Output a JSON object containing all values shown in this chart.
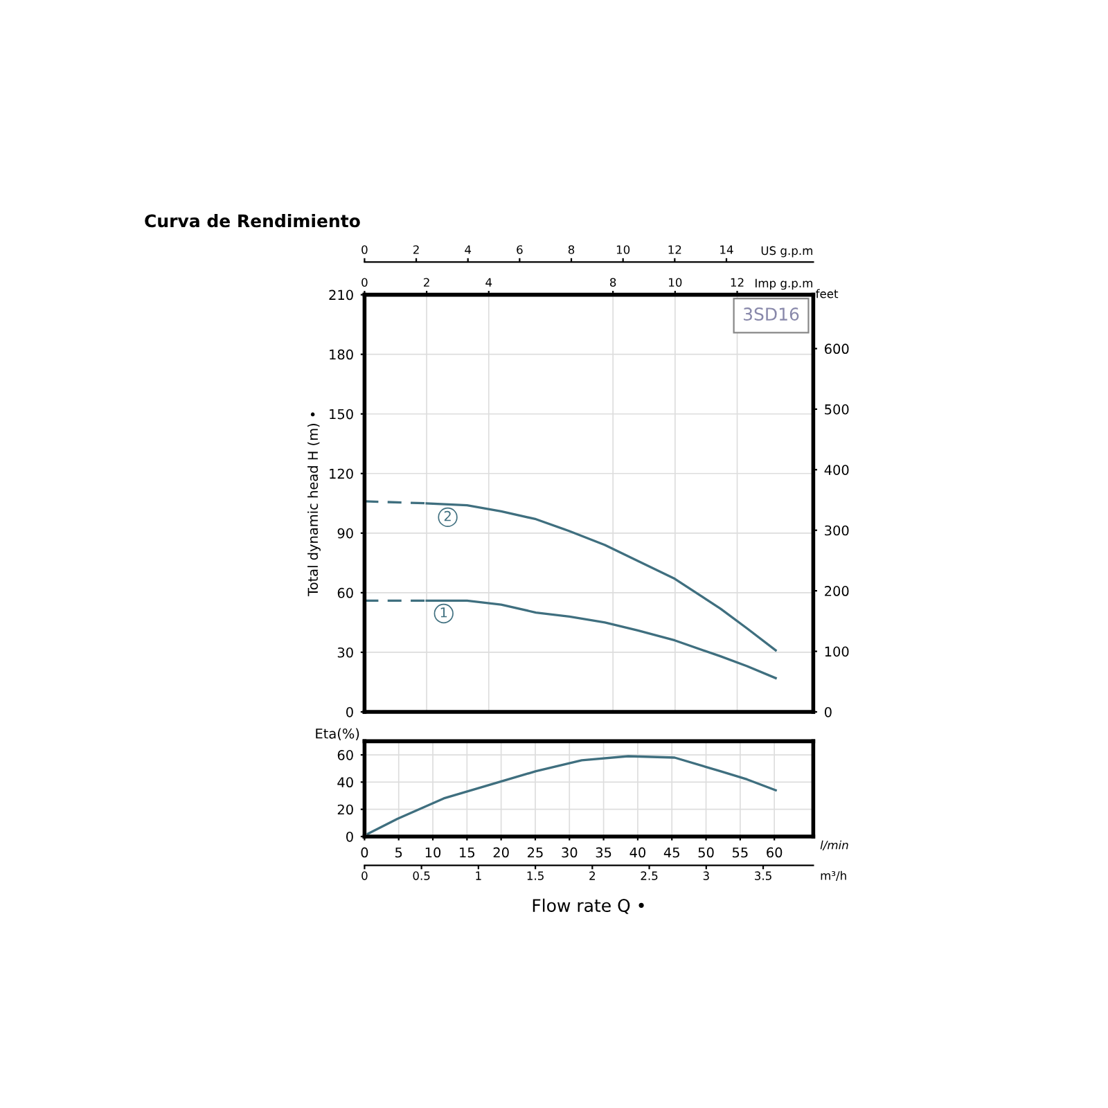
{
  "chart_data": [
    {
      "type": "line",
      "title": "Curva de Rendimiento",
      "ylabel": "Total dynamic head H (m) •",
      "y2label": "feet",
      "xlabel": "Imp g.p.m",
      "x2label": "US g.p.m",
      "xlim": [
        0,
        14.45
      ],
      "xticks": [
        0,
        2,
        4,
        8,
        10,
        12
      ],
      "x2lim": [
        0,
        17.36
      ],
      "x2ticks": [
        0,
        2,
        4,
        6,
        8,
        10,
        12,
        14
      ],
      "ylim": [
        0,
        210
      ],
      "yticks": [
        0,
        30,
        60,
        90,
        120,
        150,
        180,
        210
      ],
      "y2lim": [
        0,
        689
      ],
      "y2ticks": [
        0,
        100,
        200,
        300,
        400,
        500,
        600
      ],
      "grid": true,
      "series": [
        {
          "color": "#3f6f7f",
          "line_style": "dashed",
          "x": [
            0,
            2.0
          ],
          "values": [
            106,
            105
          ]
        },
        {
          "color": "#3f6f7f",
          "line_style": "solid",
          "x": [
            2.0,
            3.3,
            4.4,
            5.52,
            6.6,
            7.74,
            8.8,
            9.99,
            11.46,
            12.32,
            13.24
          ],
          "values": [
            105,
            104,
            101,
            97,
            91,
            84,
            76,
            67,
            52,
            42,
            31
          ]
        },
        {
          "color": "#3f6f7f",
          "line_style": "dashed",
          "x": [
            0,
            2.0
          ],
          "values": [
            56,
            56
          ]
        },
        {
          "color": "#3f6f7f",
          "line_style": "solid",
          "x": [
            2.0,
            3.3,
            4.4,
            5.52,
            6.6,
            7.74,
            8.8,
            9.99,
            11.46,
            12.32,
            13.24
          ],
          "values": [
            56,
            56,
            54,
            50,
            48,
            45,
            41,
            36,
            28,
            23,
            17
          ]
        }
      ],
      "annotations": [
        {
          "text": "2",
          "x": 2.68,
          "y": 98
        },
        {
          "text": "1",
          "x": 2.55,
          "y": 49.5
        },
        "3SD16"
      ]
    },
    {
      "type": "line",
      "ylabel": "Eta(%)",
      "xlabel": "Flow rate Q •",
      "x2label": "m³/h",
      "xlim": [
        0,
        65.7
      ],
      "xticks": [
        0,
        5,
        10,
        15,
        20,
        25,
        30,
        35,
        40,
        45,
        50,
        55,
        60
      ],
      "ylim": [
        0,
        70
      ],
      "yticks": [
        0,
        20,
        40,
        60
      ],
      "x2lim": [
        0,
        3.94
      ],
      "x2ticks": [
        0,
        0.5,
        1,
        1.5,
        2,
        2.5,
        3,
        3.5
      ],
      "grid": true,
      "series": [
        {
          "color": "#3f6f7f",
          "line_style": "solid",
          "x": [
            0.5,
            4.8,
            11.6,
            18.3,
            25.1,
            31.8,
            38.6,
            45.4,
            52.1,
            56,
            60.2
          ],
          "values": [
            2,
            13,
            28,
            38,
            48,
            56,
            59,
            58,
            48,
            42,
            34
          ]
        }
      ],
      "annotations": [
        "l/min"
      ]
    }
  ]
}
